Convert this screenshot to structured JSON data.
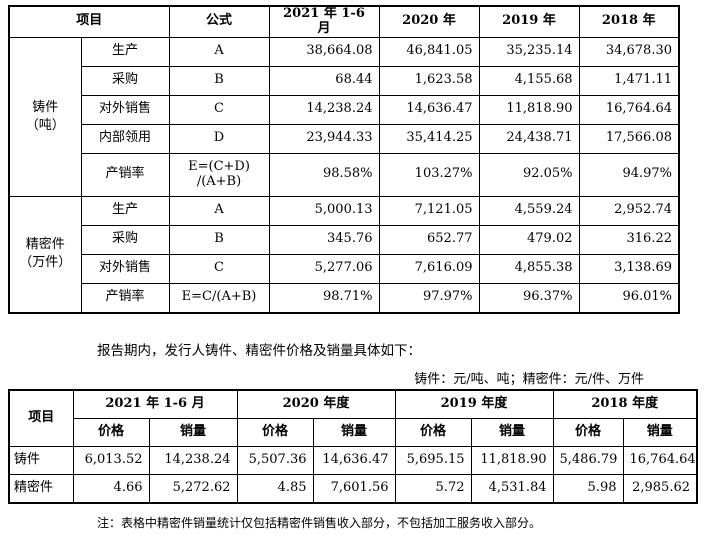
{
  "table1": {
    "headers": [
      "项目",
      "公式",
      "2021 年 1-6 月",
      "2020 年",
      "2019 年",
      "2018 年"
    ],
    "groups": [
      {
        "label_line1": "铸件",
        "label_line2": "（吨）",
        "rows": [
          {
            "item": "生产",
            "formula": "A",
            "values": [
              "38,664.08",
              "46,841.05",
              "35,235.14",
              "34,678.30"
            ]
          },
          {
            "item": "采购",
            "formula": "B",
            "values": [
              "68.44",
              "1,623.58",
              "4,155.68",
              "1,471.11"
            ]
          },
          {
            "item": "对外销售",
            "formula": "C",
            "values": [
              "14,238.24",
              "14,636.47",
              "11,818.90",
              "16,764.64"
            ]
          },
          {
            "item": "内部领用",
            "formula": "D",
            "values": [
              "23,944.33",
              "35,414.25",
              "24,438.71",
              "17,566.08"
            ]
          },
          {
            "item": "产销率",
            "formula": "E=(C+D)",
            "formula2": "/(A+B)",
            "values": [
              "98.58%",
              "103.27%",
              "92.05%",
              "94.97%"
            ]
          }
        ]
      },
      {
        "label_line1": "精密件",
        "label_line2": "（万件）",
        "rows": [
          {
            "item": "生产",
            "formula": "A",
            "values": [
              "5,000.13",
              "7,121.05",
              "4,559.24",
              "2,952.74"
            ]
          },
          {
            "item": "采购",
            "formula": "B",
            "values": [
              "345.76",
              "652.77",
              "479.02",
              "316.22"
            ]
          },
          {
            "item": "对外销售",
            "formula": "C",
            "values": [
              "5,277.06",
              "7,616.09",
              "4,855.38",
              "3,138.69"
            ]
          },
          {
            "item": "产销率",
            "formula": "E=C/(A+B)",
            "values": [
              "98.71%",
              "97.97%",
              "96.37%",
              "96.01%"
            ]
          }
        ]
      }
    ]
  },
  "intro_text": "报告期内，发行人铸件、精密件价格及销量具体如下：",
  "unit_text": "铸件：元/吨、吨；精密件：元/件、万件",
  "table2": {
    "item_header": "项目",
    "periods": [
      "2021 年 1-6 月",
      "2020 年度",
      "2019 年度",
      "2018 年度"
    ],
    "sub_headers": [
      "价格",
      "销量"
    ],
    "rows": [
      {
        "label": "铸件",
        "values": [
          "6,013.52",
          "14,238.24",
          "5,507.36",
          "14,636.47",
          "5,695.15",
          "11,818.90",
          "5,486.79",
          "16,764.64"
        ]
      },
      {
        "label": "精密件",
        "values": [
          "4.66",
          "5,272.62",
          "4.85",
          "7,601.56",
          "5.72",
          "4,531.84",
          "5.98",
          "2,985.62"
        ]
      }
    ]
  },
  "footnote": "注：表格中精密件销量统计仅包括精密件销售收入部分，不包括加工服务收入部分。"
}
